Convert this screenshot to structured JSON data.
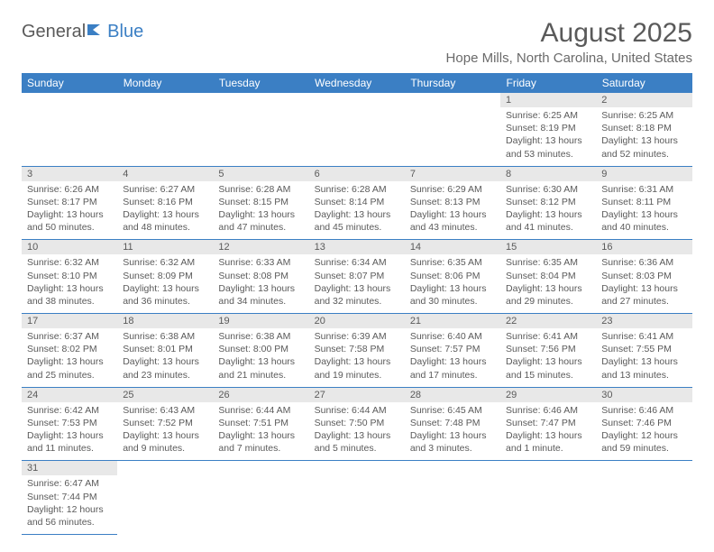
{
  "logo": {
    "text1": "General",
    "text2": "Blue"
  },
  "title": "August 2025",
  "location": "Hope Mills, North Carolina, United States",
  "colors": {
    "header_bg": "#3b7fc4",
    "header_fg": "#ffffff",
    "daynum_bg": "#e8e8e8",
    "text": "#5a5a5a",
    "cell_border": "#3b7fc4"
  },
  "weekdays": [
    "Sunday",
    "Monday",
    "Tuesday",
    "Wednesday",
    "Thursday",
    "Friday",
    "Saturday"
  ],
  "weeks": [
    [
      {
        "empty": true
      },
      {
        "empty": true
      },
      {
        "empty": true
      },
      {
        "empty": true
      },
      {
        "empty": true
      },
      {
        "day": "1",
        "sunrise": "6:25 AM",
        "sunset": "8:19 PM",
        "daylight": "13 hours and 53 minutes."
      },
      {
        "day": "2",
        "sunrise": "6:25 AM",
        "sunset": "8:18 PM",
        "daylight": "13 hours and 52 minutes."
      }
    ],
    [
      {
        "day": "3",
        "sunrise": "6:26 AM",
        "sunset": "8:17 PM",
        "daylight": "13 hours and 50 minutes."
      },
      {
        "day": "4",
        "sunrise": "6:27 AM",
        "sunset": "8:16 PM",
        "daylight": "13 hours and 48 minutes."
      },
      {
        "day": "5",
        "sunrise": "6:28 AM",
        "sunset": "8:15 PM",
        "daylight": "13 hours and 47 minutes."
      },
      {
        "day": "6",
        "sunrise": "6:28 AM",
        "sunset": "8:14 PM",
        "daylight": "13 hours and 45 minutes."
      },
      {
        "day": "7",
        "sunrise": "6:29 AM",
        "sunset": "8:13 PM",
        "daylight": "13 hours and 43 minutes."
      },
      {
        "day": "8",
        "sunrise": "6:30 AM",
        "sunset": "8:12 PM",
        "daylight": "13 hours and 41 minutes."
      },
      {
        "day": "9",
        "sunrise": "6:31 AM",
        "sunset": "8:11 PM",
        "daylight": "13 hours and 40 minutes."
      }
    ],
    [
      {
        "day": "10",
        "sunrise": "6:32 AM",
        "sunset": "8:10 PM",
        "daylight": "13 hours and 38 minutes."
      },
      {
        "day": "11",
        "sunrise": "6:32 AM",
        "sunset": "8:09 PM",
        "daylight": "13 hours and 36 minutes."
      },
      {
        "day": "12",
        "sunrise": "6:33 AM",
        "sunset": "8:08 PM",
        "daylight": "13 hours and 34 minutes."
      },
      {
        "day": "13",
        "sunrise": "6:34 AM",
        "sunset": "8:07 PM",
        "daylight": "13 hours and 32 minutes."
      },
      {
        "day": "14",
        "sunrise": "6:35 AM",
        "sunset": "8:06 PM",
        "daylight": "13 hours and 30 minutes."
      },
      {
        "day": "15",
        "sunrise": "6:35 AM",
        "sunset": "8:04 PM",
        "daylight": "13 hours and 29 minutes."
      },
      {
        "day": "16",
        "sunrise": "6:36 AM",
        "sunset": "8:03 PM",
        "daylight": "13 hours and 27 minutes."
      }
    ],
    [
      {
        "day": "17",
        "sunrise": "6:37 AM",
        "sunset": "8:02 PM",
        "daylight": "13 hours and 25 minutes."
      },
      {
        "day": "18",
        "sunrise": "6:38 AM",
        "sunset": "8:01 PM",
        "daylight": "13 hours and 23 minutes."
      },
      {
        "day": "19",
        "sunrise": "6:38 AM",
        "sunset": "8:00 PM",
        "daylight": "13 hours and 21 minutes."
      },
      {
        "day": "20",
        "sunrise": "6:39 AM",
        "sunset": "7:58 PM",
        "daylight": "13 hours and 19 minutes."
      },
      {
        "day": "21",
        "sunrise": "6:40 AM",
        "sunset": "7:57 PM",
        "daylight": "13 hours and 17 minutes."
      },
      {
        "day": "22",
        "sunrise": "6:41 AM",
        "sunset": "7:56 PM",
        "daylight": "13 hours and 15 minutes."
      },
      {
        "day": "23",
        "sunrise": "6:41 AM",
        "sunset": "7:55 PM",
        "daylight": "13 hours and 13 minutes."
      }
    ],
    [
      {
        "day": "24",
        "sunrise": "6:42 AM",
        "sunset": "7:53 PM",
        "daylight": "13 hours and 11 minutes."
      },
      {
        "day": "25",
        "sunrise": "6:43 AM",
        "sunset": "7:52 PM",
        "daylight": "13 hours and 9 minutes."
      },
      {
        "day": "26",
        "sunrise": "6:44 AM",
        "sunset": "7:51 PM",
        "daylight": "13 hours and 7 minutes."
      },
      {
        "day": "27",
        "sunrise": "6:44 AM",
        "sunset": "7:50 PM",
        "daylight": "13 hours and 5 minutes."
      },
      {
        "day": "28",
        "sunrise": "6:45 AM",
        "sunset": "7:48 PM",
        "daylight": "13 hours and 3 minutes."
      },
      {
        "day": "29",
        "sunrise": "6:46 AM",
        "sunset": "7:47 PM",
        "daylight": "13 hours and 1 minute."
      },
      {
        "day": "30",
        "sunrise": "6:46 AM",
        "sunset": "7:46 PM",
        "daylight": "12 hours and 59 minutes."
      }
    ],
    [
      {
        "day": "31",
        "sunrise": "6:47 AM",
        "sunset": "7:44 PM",
        "daylight": "12 hours and 56 minutes."
      },
      {
        "empty": true
      },
      {
        "empty": true
      },
      {
        "empty": true
      },
      {
        "empty": true
      },
      {
        "empty": true
      },
      {
        "empty": true
      }
    ]
  ]
}
